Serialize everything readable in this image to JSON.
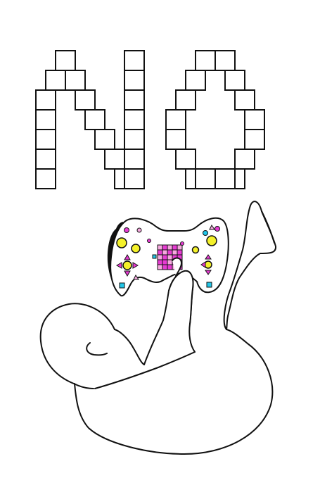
{
  "artwork": {
    "letters": [
      "N",
      "O"
    ],
    "background": "#ffffff",
    "line_color": "#111111",
    "block_fill": "#ffffff",
    "accent_colors": {
      "magenta": "#e63bd2",
      "yellow": "#f4f12a",
      "cyan": "#22c6e8",
      "pink": "#f6a9df",
      "shadow": "#111111"
    },
    "icons": [
      "controller-icon",
      "baby-figure-icon",
      "block-letters-icon"
    ]
  }
}
